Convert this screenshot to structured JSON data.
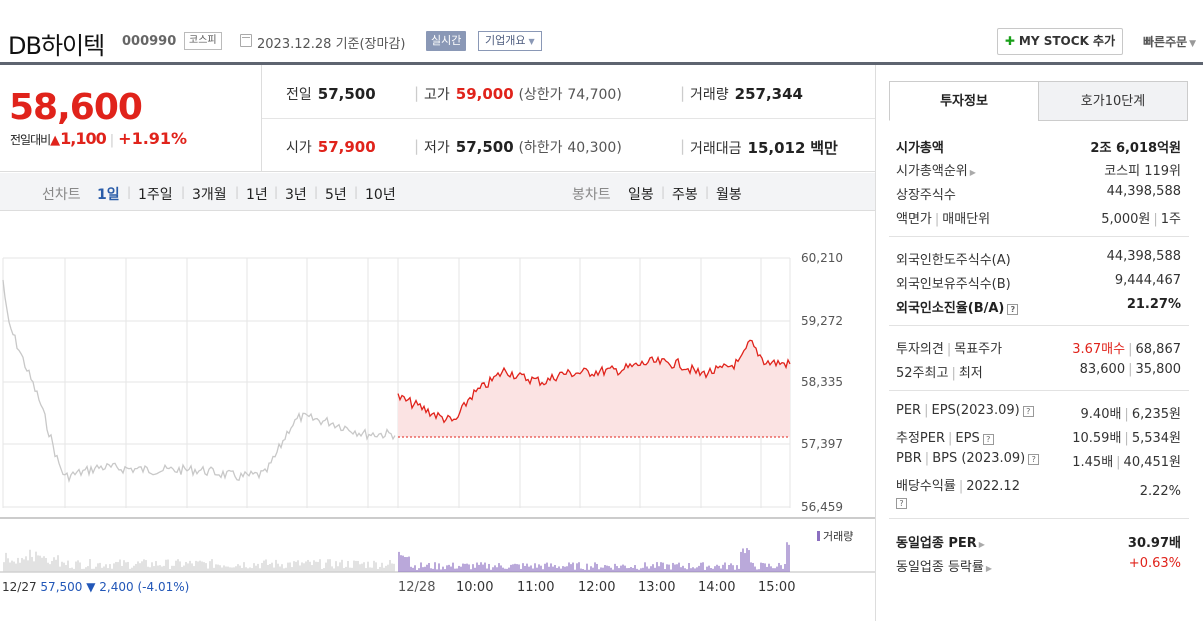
{
  "header": {
    "name": "DB하이텍",
    "code": "000990",
    "market": "코스피",
    "date": "2023.12.28 기준(장마감)",
    "realtime": "실시간",
    "company_info": "기업개요",
    "mystock": "MY STOCK 추가",
    "quick_order": "빠른주문"
  },
  "price": {
    "now": "58,600",
    "change_label": "전일대비",
    "change_arrow": "▲",
    "change_amount": "1,100",
    "change_pct": "+1.91%",
    "color_up": "#e0231b"
  },
  "stats": {
    "prev_label": "전일",
    "prev": "57,500",
    "high_label": "고가",
    "high": "59,000",
    "upper_label": "(상한가",
    "upper": "74,700)",
    "volume_label": "거래량",
    "volume": "257,344",
    "open_label": "시가",
    "open": "57,900",
    "low_label": "저가",
    "low": "57,500",
    "lower_label": "(하한가",
    "lower": "40,300)",
    "amount_label": "거래대금",
    "amount": "15,012",
    "amount_unit": "백만"
  },
  "tabs": {
    "line_label": "선차트",
    "periods": [
      "1일",
      "1주일",
      "3개월",
      "1년",
      "3년",
      "5년",
      "10년"
    ],
    "active_period": "1일",
    "candle_label": "봉차트",
    "candles": [
      "일봉",
      "주봉",
      "월봉"
    ]
  },
  "chart": {
    "y_ticks": [
      "60,210",
      "59,272",
      "58,335",
      "57,397",
      "56,459"
    ],
    "time_labels": [
      "12/28",
      "10:00",
      "11:00",
      "12:00",
      "13:00",
      "14:00",
      "15:00"
    ],
    "volume_legend": "거래량",
    "prev_day": {
      "date": "12/27",
      "close": "57,500",
      "change": "▼ 2,400",
      "pct": "(-4.01%)"
    },
    "colors": {
      "up_line": "#e0231b",
      "fill": "#fbe3e3",
      "prev_line": "#c8c8c8",
      "volume": "#8b6fc0",
      "grid": "#e6e6e6"
    }
  },
  "panel": {
    "tab_active": "투자정보",
    "tab_inactive": "호가10단계",
    "rows": {
      "market_cap_k": "시가총액",
      "market_cap_v": "2조 6,018억원",
      "rank_k": "시가총액순위",
      "rank_v": "코스피 119위",
      "shares_k": "상장주식수",
      "shares_v": "44,398,588",
      "face_k": "액면가",
      "face_k2": "매매단위",
      "face_v": "5,000원",
      "face_v2": "1주",
      "foreign_limit_k": "외국인한도주식수(A)",
      "foreign_limit_v": "44,398,588",
      "foreign_hold_k": "외국인보유주식수(B)",
      "foreign_hold_v": "9,444,467",
      "foreign_ratio_k": "외국인소진율(B/A)",
      "foreign_ratio_v": "21.27%",
      "opinion_k": "투자의견",
      "opinion_k2": "목표주가",
      "opinion_v": "3.67매수",
      "opinion_v2": "68,867",
      "w52_k": "52주최고",
      "w52_k2": "최저",
      "w52_v": "83,600",
      "w52_v2": "35,800",
      "per_k": "PER",
      "per_k2": "EPS(2023.09)",
      "per_v": "9.40배",
      "per_v2": "6,235원",
      "eper_k": "추정PER",
      "eper_k2": "EPS",
      "eper_v": "10.59배",
      "eper_v2": "5,534원",
      "pbr_k": "PBR",
      "pbr_k2": "BPS (2023.09)",
      "pbr_v": "1.45배",
      "pbr_v2": "40,451원",
      "div_k": "배당수익률",
      "div_k2": "2022.12",
      "div_v": "2.22%",
      "sector_per_k": "동일업종 PER",
      "sector_per_v": "30.97배",
      "sector_rate_k": "동일업종 등락률",
      "sector_rate_v": "+0.63%"
    }
  }
}
